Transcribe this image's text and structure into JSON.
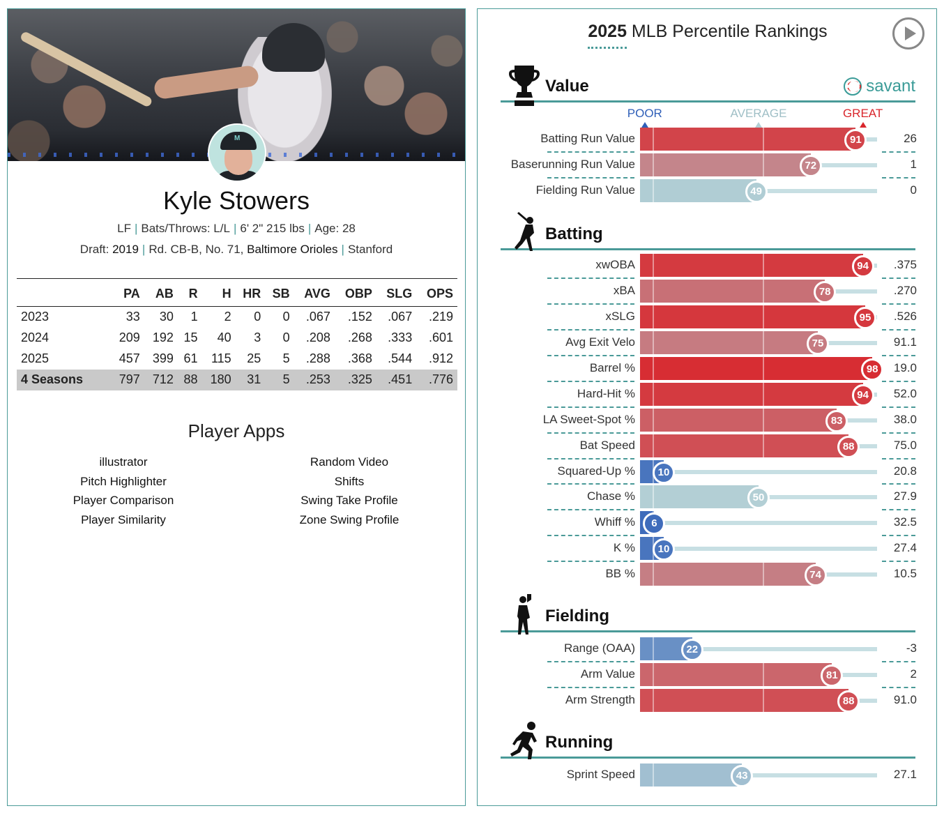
{
  "player": {
    "name": "Kyle Stowers",
    "position": "LF",
    "bats_throws": "Bats/Throws: L/L",
    "size": "6' 2\" 215 lbs",
    "age": "Age: 28",
    "draft_label": "Draft:",
    "draft_year": "2019",
    "draft_pick": "Rd. CB-B, No. 71,",
    "draft_team": "Baltimore Orioles",
    "school": "Stanford",
    "separator": "|"
  },
  "stats_table": {
    "columns": [
      "",
      "PA",
      "AB",
      "R",
      "H",
      "HR",
      "SB",
      "AVG",
      "OBP",
      "SLG",
      "OPS"
    ],
    "rows": [
      [
        "2023",
        "33",
        "30",
        "1",
        "2",
        "0",
        "0",
        ".067",
        ".152",
        ".067",
        ".219"
      ],
      [
        "2024",
        "209",
        "192",
        "15",
        "40",
        "3",
        "0",
        ".208",
        ".268",
        ".333",
        ".601"
      ],
      [
        "2025",
        "457",
        "399",
        "61",
        "115",
        "25",
        "5",
        ".288",
        ".368",
        ".544",
        ".912"
      ],
      [
        "4 Seasons",
        "797",
        "712",
        "88",
        "180",
        "31",
        "5",
        ".253",
        ".325",
        ".451",
        ".776"
      ]
    ]
  },
  "apps": {
    "title": "Player Apps",
    "left": [
      "illustrator",
      "Pitch Highlighter",
      "Player Comparison",
      "Player Similarity"
    ],
    "right": [
      "Random Video",
      "Shifts",
      "Swing Take Profile",
      "Zone Swing Profile"
    ]
  },
  "rankings": {
    "title_year": "2025",
    "title_rest": " MLB Percentile Rankings",
    "brand": "savant",
    "scale": {
      "poor": "POOR",
      "average": "AVERAGE",
      "great": "GREAT"
    },
    "colors": {
      "teal": "#4a9a98",
      "great": "#d9262c",
      "poor": "#2f5fb8",
      "average": "#b3cfd5"
    },
    "sections": [
      {
        "name": "Value",
        "icon": "trophy-icon",
        "metrics": [
          {
            "label": "Batting Run Value",
            "pct": 91,
            "value": "26"
          },
          {
            "label": "Baserunning Run Value",
            "pct": 72,
            "value": "1"
          },
          {
            "label": "Fielding Run Value",
            "pct": 49,
            "value": "0"
          }
        ]
      },
      {
        "name": "Batting",
        "icon": "batter-icon",
        "metrics": [
          {
            "label": "xwOBA",
            "pct": 94,
            "value": ".375"
          },
          {
            "label": "xBA",
            "pct": 78,
            "value": ".270"
          },
          {
            "label": "xSLG",
            "pct": 95,
            "value": ".526"
          },
          {
            "label": "Avg Exit Velo",
            "pct": 75,
            "value": "91.1"
          },
          {
            "label": "Barrel %",
            "pct": 98,
            "value": "19.0"
          },
          {
            "label": "Hard-Hit %",
            "pct": 94,
            "value": "52.0"
          },
          {
            "label": "LA Sweet-Spot %",
            "pct": 83,
            "value": "38.0"
          },
          {
            "label": "Bat Speed",
            "pct": 88,
            "value": "75.0"
          },
          {
            "label": "Squared-Up %",
            "pct": 10,
            "value": "20.8"
          },
          {
            "label": "Chase %",
            "pct": 50,
            "value": "27.9"
          },
          {
            "label": "Whiff %",
            "pct": 6,
            "value": "32.5"
          },
          {
            "label": "K %",
            "pct": 10,
            "value": "27.4"
          },
          {
            "label": "BB %",
            "pct": 74,
            "value": "10.5"
          }
        ]
      },
      {
        "name": "Fielding",
        "icon": "fielder-icon",
        "metrics": [
          {
            "label": "Range (OAA)",
            "pct": 22,
            "value": "-3"
          },
          {
            "label": "Arm Value",
            "pct": 81,
            "value": "2"
          },
          {
            "label": "Arm Strength",
            "pct": 88,
            "value": "91.0"
          }
        ]
      },
      {
        "name": "Running",
        "icon": "runner-icon",
        "metrics": [
          {
            "label": "Sprint Speed",
            "pct": 43,
            "value": "27.1"
          }
        ]
      }
    ]
  }
}
